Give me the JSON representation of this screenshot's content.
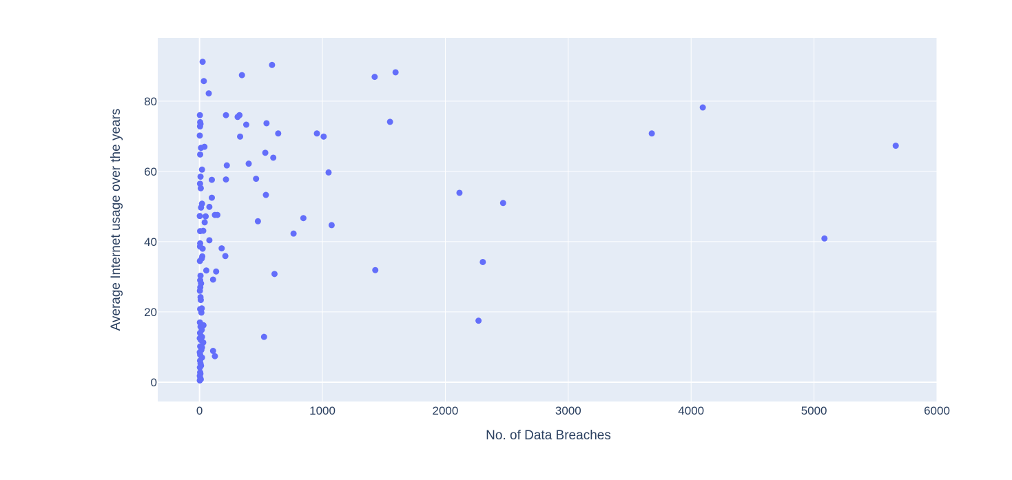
{
  "chart_data": {
    "type": "scatter",
    "title": "",
    "xlabel": "No. of Data Breaches",
    "ylabel": "Average Internet usage over the years",
    "xlim": [
      -340,
      6000
    ],
    "ylim": [
      -5.5,
      98
    ],
    "xticks": [
      0,
      1000,
      2000,
      3000,
      4000,
      5000,
      6000
    ],
    "yticks": [
      0,
      20,
      40,
      60,
      80
    ],
    "grid": true,
    "legend": "none",
    "colors": {
      "marker": "#636efa",
      "plot_bg": "#e5ecf6",
      "grid": "#ffffff",
      "text": "#2a3f5f"
    },
    "series": [
      {
        "points": [
          [
            25,
            91.2
          ],
          [
            35,
            85.7
          ],
          [
            75,
            82.2
          ],
          [
            590,
            90.3
          ],
          [
            345,
            87.4
          ],
          [
            1425,
            86.9
          ],
          [
            1595,
            88.2
          ],
          [
            3,
            76.0
          ],
          [
            5,
            74.0
          ],
          [
            8,
            73.5
          ],
          [
            4,
            72.8
          ],
          [
            2,
            70.2
          ],
          [
            12,
            66.7
          ],
          [
            40,
            67.0
          ],
          [
            5,
            64.8
          ],
          [
            20,
            60.5
          ],
          [
            8,
            58.5
          ],
          [
            4,
            56.5
          ],
          [
            10,
            55.2
          ],
          [
            20,
            50.8
          ],
          [
            12,
            49.7
          ],
          [
            2,
            47.3
          ],
          [
            5,
            43.0
          ],
          [
            30,
            43.1
          ],
          [
            42,
            45.5
          ],
          [
            50,
            47.2
          ],
          [
            80,
            49.9
          ],
          [
            100,
            52.5
          ],
          [
            100,
            57.6
          ],
          [
            125,
            47.6
          ],
          [
            145,
            47.6
          ],
          [
            215,
            57.7
          ],
          [
            222,
            61.7
          ],
          [
            215,
            76.0
          ],
          [
            310,
            75.5
          ],
          [
            325,
            76.0
          ],
          [
            330,
            69.9
          ],
          [
            380,
            73.3
          ],
          [
            400,
            62.2
          ],
          [
            460,
            57.9
          ],
          [
            475,
            45.8
          ],
          [
            540,
            53.3
          ],
          [
            535,
            65.3
          ],
          [
            545,
            73.7
          ],
          [
            600,
            63.9
          ],
          [
            640,
            70.8
          ],
          [
            845,
            46.7
          ],
          [
            955,
            70.8
          ],
          [
            1010,
            69.9
          ],
          [
            1050,
            59.7
          ],
          [
            1075,
            44.7
          ],
          [
            765,
            42.3
          ],
          [
            1550,
            74.1
          ],
          [
            2115,
            53.9
          ],
          [
            2470,
            51.0
          ],
          [
            3680,
            70.8
          ],
          [
            4095,
            78.2
          ],
          [
            5665,
            67.3
          ],
          [
            5085,
            40.9
          ],
          [
            1430,
            31.9
          ],
          [
            2305,
            34.2
          ],
          [
            2270,
            17.5
          ],
          [
            610,
            30.8
          ],
          [
            525,
            12.9
          ],
          [
            80,
            40.4
          ],
          [
            180,
            38.1
          ],
          [
            210,
            35.9
          ],
          [
            135,
            31.5
          ],
          [
            55,
            31.8
          ],
          [
            110,
            29.2
          ],
          [
            25,
            38.0
          ],
          [
            22,
            35.8
          ],
          [
            18,
            35.2
          ],
          [
            5,
            39.5
          ],
          [
            4,
            38.6
          ],
          [
            3,
            34.5
          ],
          [
            8,
            30.3
          ],
          [
            5,
            29.0
          ],
          [
            12,
            28.1
          ],
          [
            6,
            27.0
          ],
          [
            3,
            26.0
          ],
          [
            8,
            24.2
          ],
          [
            10,
            23.4
          ],
          [
            18,
            21.0
          ],
          [
            5,
            20.8
          ],
          [
            15,
            19.8
          ],
          [
            32,
            16.2
          ],
          [
            3,
            17.0
          ],
          [
            8,
            15.8
          ],
          [
            18,
            14.9
          ],
          [
            4,
            14.0
          ],
          [
            12,
            13.0
          ],
          [
            20,
            12.9
          ],
          [
            2,
            12.5
          ],
          [
            10,
            12.0
          ],
          [
            30,
            11.3
          ],
          [
            5,
            10.2
          ],
          [
            20,
            9.9
          ],
          [
            15,
            9.2
          ],
          [
            2,
            8.5
          ],
          [
            5,
            7.8
          ],
          [
            20,
            7.0
          ],
          [
            110,
            8.9
          ],
          [
            125,
            7.4
          ],
          [
            4,
            6.1
          ],
          [
            8,
            5.3
          ],
          [
            12,
            4.7
          ],
          [
            3,
            4.2
          ],
          [
            5,
            2.8
          ],
          [
            7,
            2.4
          ],
          [
            2,
            1.8
          ],
          [
            6,
            1.2
          ],
          [
            10,
            0.8
          ],
          [
            2,
            0.5
          ]
        ]
      }
    ]
  }
}
